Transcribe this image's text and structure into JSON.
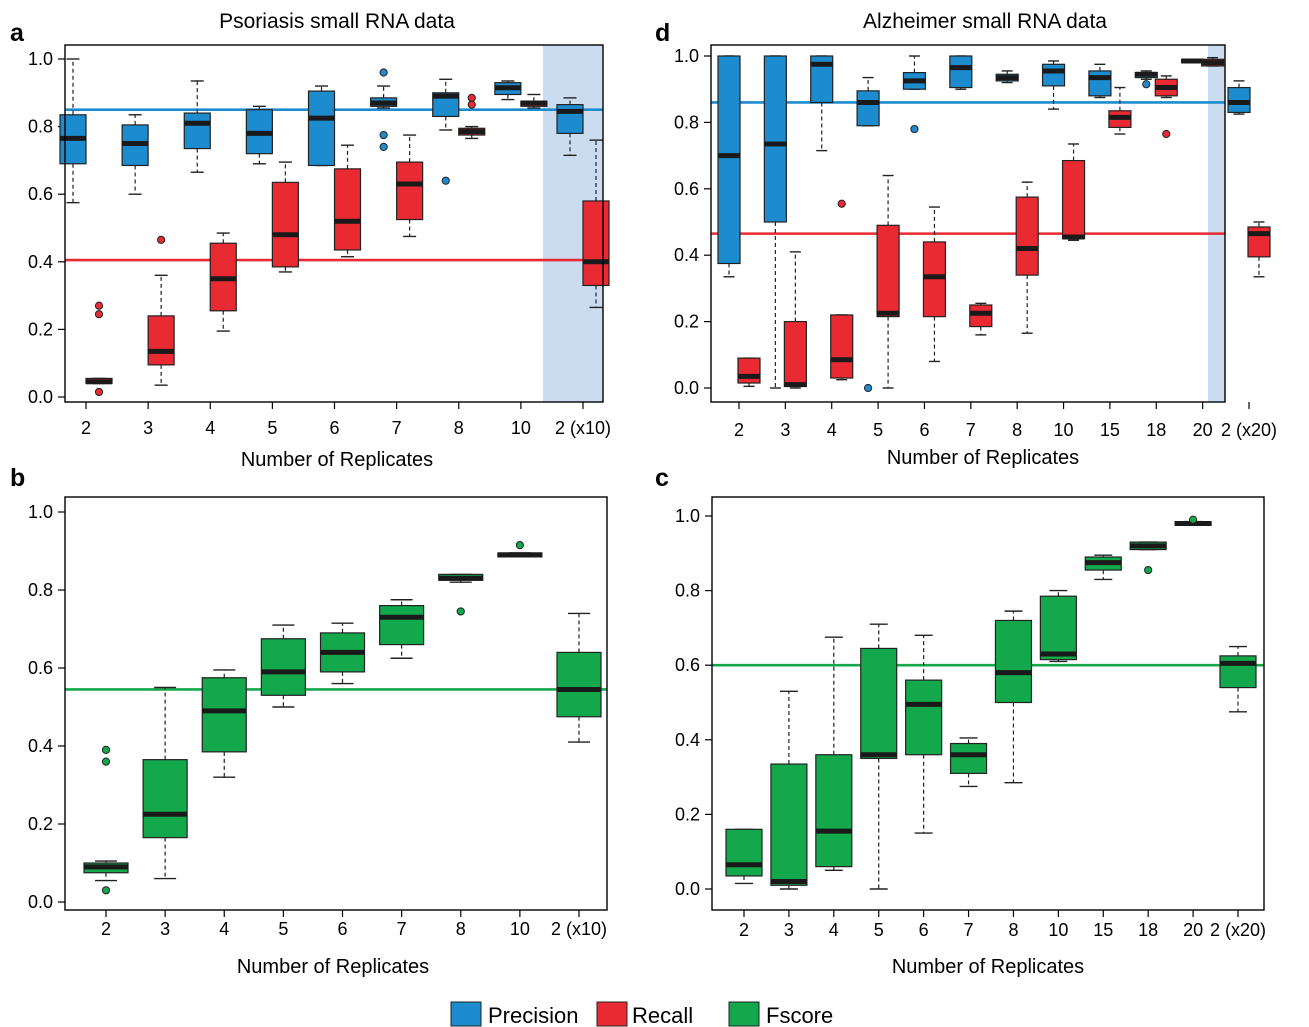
{
  "colors": {
    "precision": "#1c8ccf",
    "recall": "#ea2a32",
    "fscore": "#12a84b",
    "highlight": "#cbdcf0"
  },
  "legend": [
    {
      "label": "Precision",
      "color": "#1c8ccf"
    },
    {
      "label": "Recall",
      "color": "#ea2a32"
    },
    {
      "label": "Fscore",
      "color": "#12a84b"
    }
  ],
  "chart_data": [
    {
      "panel": "a",
      "type": "box",
      "title": "Psoriasis small RNA data",
      "xlabel": "Number of Replicates",
      "ylabel": "",
      "ylim": [
        0,
        1
      ],
      "yticks": [
        "0.0",
        "0.2",
        "0.4",
        "0.6",
        "0.8",
        "1.0"
      ],
      "categories": [
        "2",
        "3",
        "4",
        "5",
        "6",
        "7",
        "8",
        "10",
        "2 (x10)"
      ],
      "highlight_last_category": true,
      "series": [
        {
          "name": "Precision",
          "color": "#1c8ccf",
          "reference_line": 0.85,
          "boxes": [
            {
              "category": "2",
              "whisker_low": 0.575,
              "q1": 0.69,
              "median": 0.765,
              "q3": 0.835,
              "whisker_high": 1.0,
              "outliers": []
            },
            {
              "category": "3",
              "whisker_low": 0.6,
              "q1": 0.685,
              "median": 0.75,
              "q3": 0.805,
              "whisker_high": 0.835,
              "outliers": []
            },
            {
              "category": "4",
              "whisker_low": 0.665,
              "q1": 0.735,
              "median": 0.81,
              "q3": 0.84,
              "whisker_high": 0.935,
              "outliers": []
            },
            {
              "category": "5",
              "whisker_low": 0.69,
              "q1": 0.72,
              "median": 0.78,
              "q3": 0.85,
              "whisker_high": 0.86,
              "outliers": []
            },
            {
              "category": "6",
              "whisker_low": 0.685,
              "q1": 0.685,
              "median": 0.825,
              "q3": 0.905,
              "whisker_high": 0.92,
              "outliers": []
            },
            {
              "category": "7",
              "whisker_low": 0.855,
              "q1": 0.86,
              "median": 0.87,
              "q3": 0.885,
              "whisker_high": 0.92,
              "outliers": [
                0.96,
                0.775,
                0.74
              ]
            },
            {
              "category": "8",
              "whisker_low": 0.79,
              "q1": 0.83,
              "median": 0.89,
              "q3": 0.9,
              "whisker_high": 0.94,
              "outliers": [
                0.64
              ]
            },
            {
              "category": "10",
              "whisker_low": 0.88,
              "q1": 0.895,
              "median": 0.915,
              "q3": 0.93,
              "whisker_high": 0.935,
              "outliers": []
            },
            {
              "category": "2 (x10)",
              "whisker_low": 0.715,
              "q1": 0.78,
              "median": 0.845,
              "q3": 0.865,
              "whisker_high": 0.885,
              "outliers": []
            }
          ]
        },
        {
          "name": "Recall",
          "color": "#ea2a32",
          "reference_line": 0.405,
          "boxes": [
            {
              "category": "2",
              "whisker_low": 0.04,
              "q1": 0.04,
              "median": 0.045,
              "q3": 0.055,
              "whisker_high": 0.055,
              "outliers": [
                0.27,
                0.245,
                0.015
              ]
            },
            {
              "category": "3",
              "whisker_low": 0.035,
              "q1": 0.095,
              "median": 0.135,
              "q3": 0.24,
              "whisker_high": 0.36,
              "outliers": [
                0.465
              ]
            },
            {
              "category": "4",
              "whisker_low": 0.195,
              "q1": 0.255,
              "median": 0.35,
              "q3": 0.455,
              "whisker_high": 0.485,
              "outliers": []
            },
            {
              "category": "5",
              "whisker_low": 0.37,
              "q1": 0.385,
              "median": 0.48,
              "q3": 0.635,
              "whisker_high": 0.695,
              "outliers": []
            },
            {
              "category": "6",
              "whisker_low": 0.415,
              "q1": 0.435,
              "median": 0.52,
              "q3": 0.675,
              "whisker_high": 0.745,
              "outliers": []
            },
            {
              "category": "7",
              "whisker_low": 0.475,
              "q1": 0.525,
              "median": 0.63,
              "q3": 0.695,
              "whisker_high": 0.775,
              "outliers": []
            },
            {
              "category": "8",
              "whisker_low": 0.765,
              "q1": 0.775,
              "median": 0.785,
              "q3": 0.795,
              "whisker_high": 0.8,
              "outliers": [
                0.885,
                0.865
              ]
            },
            {
              "category": "10",
              "whisker_low": 0.855,
              "q1": 0.86,
              "median": 0.87,
              "q3": 0.875,
              "whisker_high": 0.895,
              "outliers": []
            },
            {
              "category": "2 (x10)",
              "whisker_low": 0.265,
              "q1": 0.33,
              "median": 0.4,
              "q3": 0.58,
              "whisker_high": 0.76,
              "outliers": []
            }
          ]
        }
      ]
    },
    {
      "panel": "d",
      "type": "box",
      "title": "Alzheimer small RNA data",
      "xlabel": "Number of Replicates",
      "ylabel": "",
      "ylim": [
        0,
        1
      ],
      "yticks": [
        "0.0",
        "0.2",
        "0.4",
        "0.6",
        "0.8",
        "1.0"
      ],
      "categories": [
        "2",
        "3",
        "4",
        "5",
        "6",
        "7",
        "8",
        "10",
        "15",
        "18",
        "20",
        "2 (x20)"
      ],
      "highlight_last_category": true,
      "series": [
        {
          "name": "Precision",
          "color": "#1c8ccf",
          "reference_line": 0.86,
          "boxes": [
            {
              "category": "2",
              "whisker_low": 0.335,
              "q1": 0.375,
              "median": 0.7,
              "q3": 1.0,
              "whisker_high": 1.0,
              "outliers": []
            },
            {
              "category": "3",
              "whisker_low": 0.0,
              "q1": 0.5,
              "median": 0.735,
              "q3": 1.0,
              "whisker_high": 1.0,
              "outliers": []
            },
            {
              "category": "4",
              "whisker_low": 0.715,
              "q1": 0.86,
              "median": 0.975,
              "q3": 1.0,
              "whisker_high": 1.0,
              "outliers": []
            },
            {
              "category": "5",
              "whisker_low": 0.79,
              "q1": 0.79,
              "median": 0.86,
              "q3": 0.895,
              "whisker_high": 0.935,
              "outliers": [
                0.0
              ]
            },
            {
              "category": "6",
              "whisker_low": 0.9,
              "q1": 0.9,
              "median": 0.925,
              "q3": 0.95,
              "whisker_high": 1.0,
              "outliers": [
                0.78
              ]
            },
            {
              "category": "7",
              "whisker_low": 0.9,
              "q1": 0.905,
              "median": 0.965,
              "q3": 1.0,
              "whisker_high": 1.0,
              "outliers": []
            },
            {
              "category": "8",
              "whisker_low": 0.92,
              "q1": 0.925,
              "median": 0.935,
              "q3": 0.945,
              "whisker_high": 0.955,
              "outliers": []
            },
            {
              "category": "10",
              "whisker_low": 0.84,
              "q1": 0.91,
              "median": 0.955,
              "q3": 0.975,
              "whisker_high": 0.985,
              "outliers": []
            },
            {
              "category": "15",
              "whisker_low": 0.875,
              "q1": 0.88,
              "median": 0.935,
              "q3": 0.955,
              "whisker_high": 0.975,
              "outliers": []
            },
            {
              "category": "18",
              "whisker_low": 0.93,
              "q1": 0.935,
              "median": 0.945,
              "q3": 0.95,
              "whisker_high": 0.955,
              "outliers": [
                0.915
              ]
            },
            {
              "category": "20",
              "whisker_low": 0.98,
              "q1": 0.98,
              "median": 0.985,
              "q3": 0.99,
              "whisker_high": 0.99,
              "outliers": []
            },
            {
              "category": "2 (x20)",
              "whisker_low": 0.825,
              "q1": 0.83,
              "median": 0.86,
              "q3": 0.905,
              "whisker_high": 0.925,
              "outliers": []
            }
          ]
        },
        {
          "name": "Recall",
          "color": "#ea2a32",
          "reference_line": 0.465,
          "boxes": [
            {
              "category": "2",
              "whisker_low": 0.005,
              "q1": 0.015,
              "median": 0.035,
              "q3": 0.09,
              "whisker_high": 0.09,
              "outliers": []
            },
            {
              "category": "3",
              "whisker_low": 0.0,
              "q1": 0.005,
              "median": 0.01,
              "q3": 0.2,
              "whisker_high": 0.41,
              "outliers": []
            },
            {
              "category": "4",
              "whisker_low": 0.025,
              "q1": 0.03,
              "median": 0.085,
              "q3": 0.22,
              "whisker_high": 0.22,
              "outliers": [
                0.555
              ]
            },
            {
              "category": "5",
              "whisker_low": 0.0,
              "q1": 0.215,
              "median": 0.225,
              "q3": 0.49,
              "whisker_high": 0.64,
              "outliers": []
            },
            {
              "category": "6",
              "whisker_low": 0.08,
              "q1": 0.215,
              "median": 0.335,
              "q3": 0.44,
              "whisker_high": 0.545,
              "outliers": []
            },
            {
              "category": "7",
              "whisker_low": 0.16,
              "q1": 0.185,
              "median": 0.225,
              "q3": 0.25,
              "whisker_high": 0.255,
              "outliers": []
            },
            {
              "category": "8",
              "whisker_low": 0.165,
              "q1": 0.34,
              "median": 0.42,
              "q3": 0.575,
              "whisker_high": 0.62,
              "outliers": []
            },
            {
              "category": "10",
              "whisker_low": 0.445,
              "q1": 0.45,
              "median": 0.455,
              "q3": 0.685,
              "whisker_high": 0.735,
              "outliers": []
            },
            {
              "category": "15",
              "whisker_low": 0.765,
              "q1": 0.785,
              "median": 0.815,
              "q3": 0.835,
              "whisker_high": 0.905,
              "outliers": []
            },
            {
              "category": "18",
              "whisker_low": 0.875,
              "q1": 0.88,
              "median": 0.905,
              "q3": 0.93,
              "whisker_high": 0.94,
              "outliers": [
                0.765
              ]
            },
            {
              "category": "20",
              "whisker_low": 0.97,
              "q1": 0.97,
              "median": 0.98,
              "q3": 0.99,
              "whisker_high": 0.995,
              "outliers": []
            },
            {
              "category": "2 (x20)",
              "whisker_low": 0.335,
              "q1": 0.395,
              "median": 0.465,
              "q3": 0.485,
              "whisker_high": 0.5,
              "outliers": []
            }
          ]
        }
      ]
    },
    {
      "panel": "b",
      "type": "box",
      "title": "",
      "xlabel": "Number of Replicates",
      "ylabel": "",
      "ylim": [
        0,
        1
      ],
      "yticks": [
        "0.0",
        "0.2",
        "0.4",
        "0.6",
        "0.8",
        "1.0"
      ],
      "categories": [
        "2",
        "3",
        "4",
        "5",
        "6",
        "7",
        "8",
        "10",
        "2 (x10)"
      ],
      "highlight_last_category": false,
      "series": [
        {
          "name": "Fscore",
          "color": "#12a84b",
          "reference_line": 0.545,
          "boxes": [
            {
              "category": "2",
              "whisker_low": 0.055,
              "q1": 0.075,
              "median": 0.09,
              "q3": 0.1,
              "whisker_high": 0.105,
              "outliers": [
                0.39,
                0.36,
                0.03
              ]
            },
            {
              "category": "3",
              "whisker_low": 0.06,
              "q1": 0.165,
              "median": 0.225,
              "q3": 0.365,
              "whisker_high": 0.55,
              "outliers": []
            },
            {
              "category": "4",
              "whisker_low": 0.32,
              "q1": 0.385,
              "median": 0.49,
              "q3": 0.575,
              "whisker_high": 0.595,
              "outliers": []
            },
            {
              "category": "5",
              "whisker_low": 0.5,
              "q1": 0.53,
              "median": 0.59,
              "q3": 0.675,
              "whisker_high": 0.71,
              "outliers": []
            },
            {
              "category": "6",
              "whisker_low": 0.56,
              "q1": 0.59,
              "median": 0.64,
              "q3": 0.69,
              "whisker_high": 0.715,
              "outliers": []
            },
            {
              "category": "7",
              "whisker_low": 0.625,
              "q1": 0.66,
              "median": 0.73,
              "q3": 0.76,
              "whisker_high": 0.775,
              "outliers": []
            },
            {
              "category": "8",
              "whisker_low": 0.82,
              "q1": 0.825,
              "median": 0.83,
              "q3": 0.84,
              "whisker_high": 0.84,
              "outliers": [
                0.745
              ]
            },
            {
              "category": "10",
              "whisker_low": 0.885,
              "q1": 0.885,
              "median": 0.89,
              "q3": 0.895,
              "whisker_high": 0.895,
              "outliers": [
                0.915
              ]
            },
            {
              "category": "2 (x10)",
              "whisker_low": 0.41,
              "q1": 0.475,
              "median": 0.545,
              "q3": 0.64,
              "whisker_high": 0.74,
              "outliers": []
            }
          ]
        }
      ]
    },
    {
      "panel": "c",
      "type": "box",
      "title": "",
      "xlabel": "Number of Replicates",
      "ylabel": "",
      "ylim": [
        0,
        1
      ],
      "yticks": [
        "0.0",
        "0.2",
        "0.4",
        "0.6",
        "0.8",
        "1.0"
      ],
      "categories": [
        "2",
        "3",
        "4",
        "5",
        "6",
        "7",
        "8",
        "10",
        "15",
        "18",
        "20",
        "2 (x20)"
      ],
      "highlight_last_category": false,
      "series": [
        {
          "name": "Fscore",
          "color": "#12a84b",
          "reference_line": 0.6,
          "boxes": [
            {
              "category": "2",
              "whisker_low": 0.015,
              "q1": 0.035,
              "median": 0.065,
              "q3": 0.16,
              "whisker_high": 0.16,
              "outliers": []
            },
            {
              "category": "3",
              "whisker_low": 0.0,
              "q1": 0.01,
              "median": 0.02,
              "q3": 0.335,
              "whisker_high": 0.53,
              "outliers": []
            },
            {
              "category": "4",
              "whisker_low": 0.05,
              "q1": 0.06,
              "median": 0.155,
              "q3": 0.36,
              "whisker_high": 0.675,
              "outliers": []
            },
            {
              "category": "5",
              "whisker_low": 0.0,
              "q1": 0.35,
              "median": 0.36,
              "q3": 0.645,
              "whisker_high": 0.71,
              "outliers": []
            },
            {
              "category": "6",
              "whisker_low": 0.15,
              "q1": 0.36,
              "median": 0.495,
              "q3": 0.56,
              "whisker_high": 0.68,
              "outliers": []
            },
            {
              "category": "7",
              "whisker_low": 0.275,
              "q1": 0.31,
              "median": 0.36,
              "q3": 0.39,
              "whisker_high": 0.405,
              "outliers": []
            },
            {
              "category": "8",
              "whisker_low": 0.285,
              "q1": 0.5,
              "median": 0.58,
              "q3": 0.72,
              "whisker_high": 0.745,
              "outliers": []
            },
            {
              "category": "10",
              "whisker_low": 0.61,
              "q1": 0.615,
              "median": 0.63,
              "q3": 0.785,
              "whisker_high": 0.8,
              "outliers": []
            },
            {
              "category": "15",
              "whisker_low": 0.83,
              "q1": 0.855,
              "median": 0.875,
              "q3": 0.89,
              "whisker_high": 0.895,
              "outliers": []
            },
            {
              "category": "18",
              "whisker_low": 0.91,
              "q1": 0.91,
              "median": 0.92,
              "q3": 0.93,
              "whisker_high": 0.93,
              "outliers": [
                0.855
              ]
            },
            {
              "category": "20",
              "whisker_low": 0.975,
              "q1": 0.975,
              "median": 0.98,
              "q3": 0.985,
              "whisker_high": 0.985,
              "outliers": [
                0.99
              ]
            },
            {
              "category": "2 (x20)",
              "whisker_low": 0.475,
              "q1": 0.54,
              "median": 0.605,
              "q3": 0.625,
              "whisker_high": 0.65,
              "outliers": []
            }
          ]
        }
      ]
    }
  ]
}
